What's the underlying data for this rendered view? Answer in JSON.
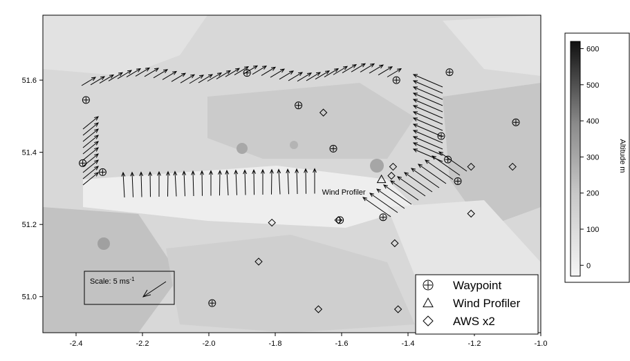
{
  "chart_data": {
    "type": "scatter",
    "xlim": [
      -2.5,
      -1.0
    ],
    "ylim": [
      50.9,
      51.78
    ],
    "x_ticks": [
      -2.4,
      -2.2,
      -2.0,
      -1.8,
      -1.6,
      -1.4,
      -1.2,
      -1.0
    ],
    "y_ticks": [
      51.0,
      51.2,
      51.4,
      51.6
    ],
    "grid": false,
    "colors": {
      "background": "#d9d9d9",
      "marker": "#000000",
      "arrow": "#000000"
    },
    "waypoints": [
      {
        "x": -2.37,
        "y": 51.545
      },
      {
        "x": -2.38,
        "y": 51.37
      },
      {
        "x": -2.32,
        "y": 51.345
      },
      {
        "x": -1.885,
        "y": 51.62
      },
      {
        "x": -1.73,
        "y": 51.53
      },
      {
        "x": -1.625,
        "y": 51.41
      },
      {
        "x": -1.435,
        "y": 51.6
      },
      {
        "x": -1.275,
        "y": 51.622
      },
      {
        "x": -1.3,
        "y": 51.445
      },
      {
        "x": -1.28,
        "y": 51.38
      },
      {
        "x": -1.25,
        "y": 51.32
      },
      {
        "x": -1.075,
        "y": 51.483
      },
      {
        "x": -1.475,
        "y": 51.22
      },
      {
        "x": -1.605,
        "y": 51.212
      },
      {
        "x": -1.99,
        "y": 50.982
      }
    ],
    "wind_profiler": [
      {
        "x": -1.48,
        "y": 51.325
      }
    ],
    "aws": [
      {
        "x": -1.655,
        "y": 51.51
      },
      {
        "x": -1.445,
        "y": 51.36
      },
      {
        "x": -1.45,
        "y": 51.335
      },
      {
        "x": -1.21,
        "y": 51.36
      },
      {
        "x": -1.085,
        "y": 51.36
      },
      {
        "x": -1.21,
        "y": 51.23
      },
      {
        "x": -1.81,
        "y": 51.205
      },
      {
        "x": -1.61,
        "y": 51.212
      },
      {
        "x": -1.44,
        "y": 51.148
      },
      {
        "x": -1.85,
        "y": 51.097
      },
      {
        "x": -1.67,
        "y": 50.965
      },
      {
        "x": -1.43,
        "y": 50.965
      }
    ],
    "colorbar": {
      "label": "Altitude m",
      "ticks": [
        0,
        100,
        200,
        300,
        400,
        500,
        600
      ],
      "range": [
        -30,
        620
      ]
    },
    "legend": {
      "position": "bottom-right",
      "entries": [
        {
          "symbol": "circle-plus",
          "label": "Waypoint"
        },
        {
          "symbol": "triangle",
          "label": "Wind Profiler"
        },
        {
          "symbol": "diamond",
          "label": "AWS x2"
        }
      ]
    },
    "annotations": {
      "wind_profiler_label": "Wind Profiler",
      "scale_label": "Scale: 5 ms",
      "scale_superscript": "-1"
    }
  }
}
